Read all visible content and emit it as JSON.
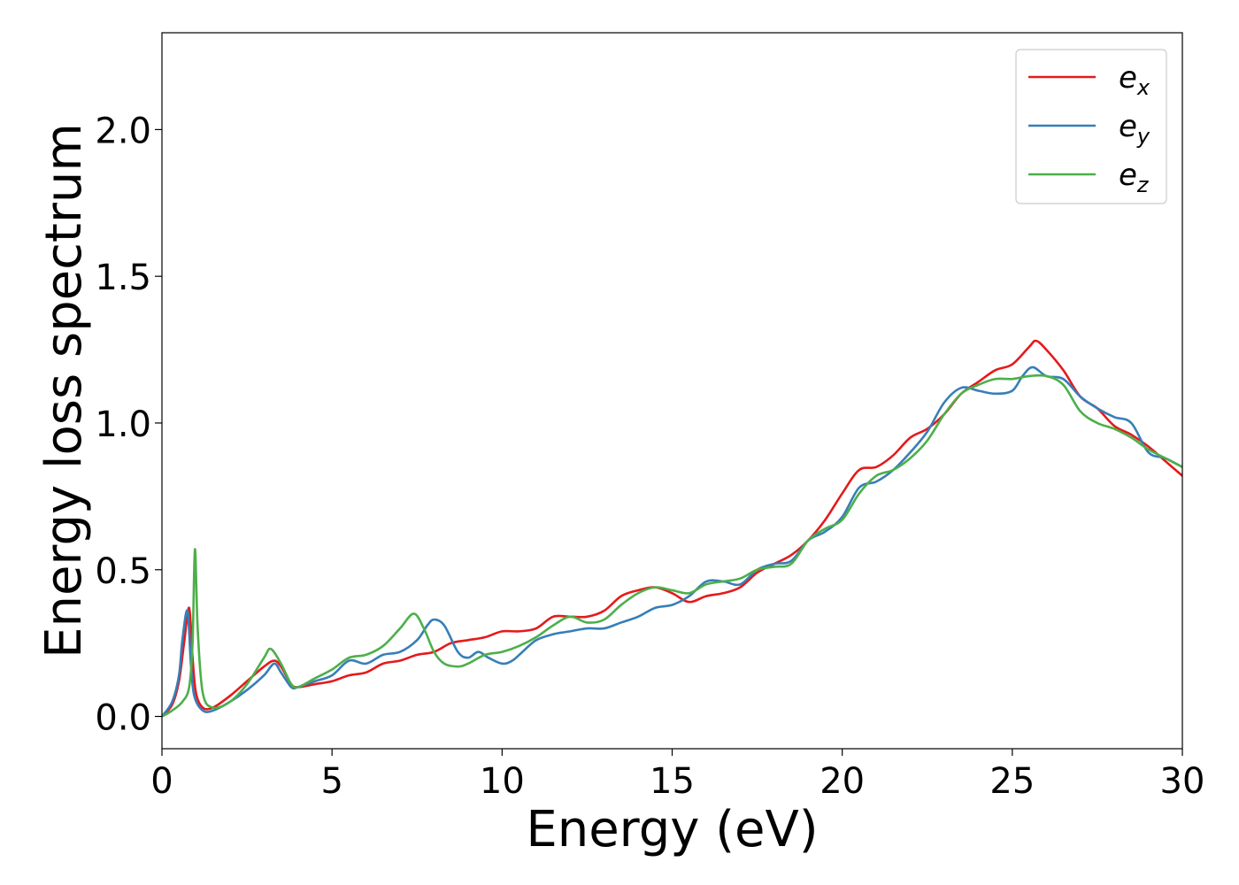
{
  "chart_data": {
    "type": "line",
    "title": "",
    "xlabel": "Energy (eV)",
    "ylabel": "Energy loss spectrum",
    "xlim": [
      0,
      30
    ],
    "ylim": [
      -0.11,
      2.33
    ],
    "xticks": [
      0,
      5,
      10,
      15,
      20,
      25,
      30
    ],
    "xtick_labels": [
      "0",
      "5",
      "10",
      "15",
      "20",
      "25",
      "30"
    ],
    "yticks": [
      0.0,
      0.5,
      1.0,
      1.5,
      2.0
    ],
    "ytick_labels": [
      "0.0",
      "0.5",
      "1.0",
      "1.5",
      "2.0"
    ],
    "grid": false,
    "legend_position": "top-right",
    "series": [
      {
        "name": "e",
        "subscript": "x",
        "color": "#e41a1c",
        "x": [
          0,
          0.3,
          0.5,
          0.65,
          0.8,
          0.9,
          1.0,
          1.2,
          1.5,
          2.0,
          2.5,
          3.0,
          3.3,
          3.5,
          3.8,
          4.0,
          4.5,
          5.0,
          5.5,
          6.0,
          6.5,
          7.0,
          7.5,
          8.0,
          8.5,
          9.0,
          9.5,
          10.0,
          10.5,
          11.0,
          11.5,
          12.0,
          12.5,
          13.0,
          13.5,
          14.0,
          14.5,
          15.0,
          15.5,
          16.0,
          16.5,
          17.0,
          17.5,
          18.0,
          18.5,
          19.0,
          19.5,
          20.0,
          20.5,
          21.0,
          21.5,
          22.0,
          22.5,
          23.0,
          23.5,
          24.0,
          24.5,
          25.0,
          25.5,
          25.7,
          26.0,
          26.5,
          27.0,
          27.5,
          28.0,
          28.5,
          29.0,
          29.5,
          30.0
        ],
        "values": [
          0.0,
          0.04,
          0.12,
          0.25,
          0.37,
          0.2,
          0.08,
          0.03,
          0.03,
          0.07,
          0.12,
          0.17,
          0.19,
          0.17,
          0.11,
          0.1,
          0.11,
          0.12,
          0.14,
          0.15,
          0.18,
          0.19,
          0.21,
          0.22,
          0.25,
          0.26,
          0.27,
          0.29,
          0.29,
          0.3,
          0.34,
          0.34,
          0.34,
          0.36,
          0.41,
          0.43,
          0.44,
          0.42,
          0.39,
          0.41,
          0.42,
          0.44,
          0.49,
          0.52,
          0.55,
          0.6,
          0.67,
          0.76,
          0.84,
          0.85,
          0.89,
          0.95,
          0.98,
          1.03,
          1.1,
          1.14,
          1.18,
          1.2,
          1.26,
          1.28,
          1.25,
          1.18,
          1.09,
          1.05,
          0.99,
          0.96,
          0.92,
          0.87,
          0.82
        ]
      },
      {
        "name": "e",
        "subscript": "y",
        "color": "#377eb8",
        "x": [
          0,
          0.3,
          0.5,
          0.6,
          0.75,
          0.85,
          0.95,
          1.2,
          1.5,
          2.0,
          2.5,
          3.0,
          3.3,
          3.5,
          3.8,
          4.0,
          4.5,
          5.0,
          5.5,
          6.0,
          6.5,
          7.0,
          7.5,
          7.8,
          8.0,
          8.3,
          8.7,
          9.0,
          9.3,
          9.6,
          10.0,
          10.3,
          10.6,
          11.0,
          11.5,
          12.0,
          12.5,
          13.0,
          13.5,
          14.0,
          14.5,
          15.0,
          15.5,
          16.0,
          16.5,
          17.0,
          17.5,
          18.0,
          18.5,
          19.0,
          19.5,
          20.0,
          20.5,
          21.0,
          21.5,
          22.0,
          22.5,
          23.0,
          23.5,
          24.0,
          24.5,
          25.0,
          25.3,
          25.6,
          26.0,
          26.5,
          27.0,
          27.5,
          28.0,
          28.5,
          29.0,
          29.5,
          30.0
        ],
        "values": [
          0.0,
          0.05,
          0.14,
          0.26,
          0.36,
          0.18,
          0.07,
          0.02,
          0.02,
          0.05,
          0.09,
          0.14,
          0.18,
          0.15,
          0.1,
          0.1,
          0.12,
          0.14,
          0.19,
          0.18,
          0.21,
          0.22,
          0.26,
          0.31,
          0.33,
          0.31,
          0.22,
          0.2,
          0.22,
          0.2,
          0.18,
          0.19,
          0.22,
          0.26,
          0.28,
          0.29,
          0.3,
          0.3,
          0.32,
          0.34,
          0.37,
          0.38,
          0.41,
          0.46,
          0.46,
          0.45,
          0.5,
          0.52,
          0.53,
          0.6,
          0.63,
          0.68,
          0.78,
          0.8,
          0.84,
          0.9,
          0.97,
          1.07,
          1.12,
          1.11,
          1.1,
          1.11,
          1.16,
          1.19,
          1.16,
          1.15,
          1.09,
          1.05,
          1.02,
          1.0,
          0.9,
          0.88,
          0.85
        ]
      },
      {
        "name": "e",
        "subscript": "z",
        "color": "#4daf4a",
        "x": [
          0,
          0.3,
          0.6,
          0.8,
          0.9,
          0.97,
          1.05,
          1.2,
          1.5,
          2.0,
          2.5,
          3.0,
          3.2,
          3.5,
          3.8,
          4.0,
          4.5,
          5.0,
          5.5,
          6.0,
          6.5,
          7.0,
          7.4,
          7.7,
          8.0,
          8.3,
          8.7,
          9.0,
          9.5,
          10.0,
          10.5,
          11.0,
          11.5,
          12.0,
          12.5,
          13.0,
          13.5,
          14.0,
          14.5,
          15.0,
          15.5,
          16.0,
          16.5,
          17.0,
          17.5,
          18.0,
          18.5,
          19.0,
          19.5,
          20.0,
          20.5,
          21.0,
          21.5,
          22.0,
          22.5,
          23.0,
          23.5,
          24.0,
          24.5,
          25.0,
          25.5,
          26.0,
          26.5,
          27.0,
          27.5,
          28.0,
          28.5,
          29.0,
          29.5,
          30.0
        ],
        "values": [
          0.0,
          0.02,
          0.05,
          0.1,
          0.25,
          0.57,
          0.3,
          0.08,
          0.03,
          0.05,
          0.11,
          0.2,
          0.23,
          0.18,
          0.11,
          0.1,
          0.13,
          0.16,
          0.2,
          0.21,
          0.24,
          0.3,
          0.35,
          0.3,
          0.22,
          0.18,
          0.17,
          0.18,
          0.21,
          0.22,
          0.24,
          0.27,
          0.31,
          0.34,
          0.32,
          0.33,
          0.38,
          0.42,
          0.44,
          0.43,
          0.42,
          0.45,
          0.46,
          0.47,
          0.5,
          0.51,
          0.52,
          0.6,
          0.64,
          0.67,
          0.76,
          0.82,
          0.84,
          0.88,
          0.94,
          1.03,
          1.1,
          1.13,
          1.15,
          1.15,
          1.16,
          1.16,
          1.13,
          1.04,
          1.0,
          0.98,
          0.95,
          0.91,
          0.88,
          0.85
        ]
      }
    ]
  }
}
